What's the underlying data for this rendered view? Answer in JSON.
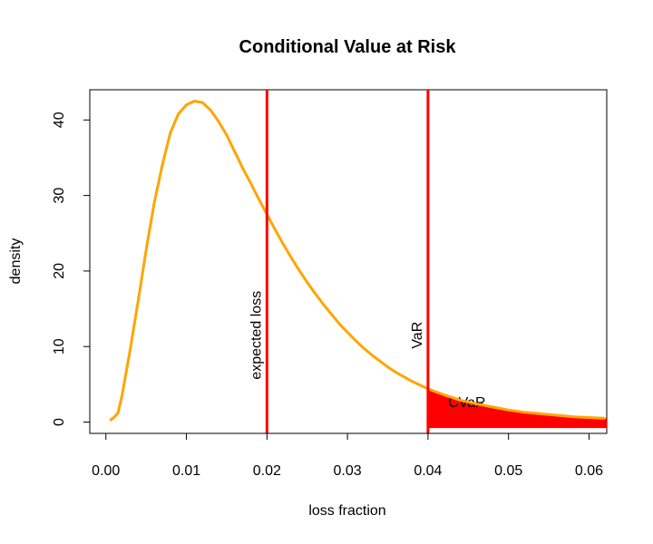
{
  "chart_data": {
    "type": "line",
    "title": "Conditional Value at Risk",
    "xlabel": "loss fraction",
    "ylabel": "density",
    "xlim": [
      -0.002,
      0.0622
    ],
    "ylim": [
      -1.5,
      44
    ],
    "x_ticks": [
      0.0,
      0.01,
      0.02,
      0.03,
      0.04,
      0.05,
      0.06
    ],
    "x_tick_labels": [
      "0.00",
      "0.01",
      "0.02",
      "0.03",
      "0.04",
      "0.05",
      "0.06"
    ],
    "y_ticks": [
      0,
      10,
      20,
      30,
      40
    ],
    "y_tick_labels": [
      "0",
      "10",
      "20",
      "30",
      "40"
    ],
    "grid": false,
    "series": [
      {
        "color": "#FFA500",
        "x": [
          0.0005,
          0.001,
          0.0015,
          0.002,
          0.003,
          0.004,
          0.005,
          0.006,
          0.007,
          0.008,
          0.009,
          0.01,
          0.011,
          0.012,
          0.013,
          0.014,
          0.015,
          0.016,
          0.017,
          0.018,
          0.019,
          0.02,
          0.021,
          0.022,
          0.023,
          0.024,
          0.025,
          0.026,
          0.027,
          0.028,
          0.029,
          0.03,
          0.031,
          0.032,
          0.033,
          0.034,
          0.035,
          0.036,
          0.037,
          0.038,
          0.039,
          0.04,
          0.042,
          0.044,
          0.046,
          0.048,
          0.05,
          0.052,
          0.054,
          0.056,
          0.058,
          0.06,
          0.062
        ],
        "y": [
          0.2,
          0.6,
          1.2,
          3.5,
          9.5,
          16.0,
          22.8,
          29.0,
          34.0,
          38.3,
          40.8,
          42.0,
          42.5,
          42.3,
          41.3,
          39.8,
          38.0,
          35.8,
          33.6,
          31.6,
          29.5,
          27.5,
          25.5,
          23.6,
          21.8,
          20.1,
          18.5,
          17.0,
          15.6,
          14.3,
          13.0,
          11.9,
          10.8,
          9.8,
          8.9,
          8.1,
          7.3,
          6.6,
          6.0,
          5.4,
          4.9,
          4.4,
          3.6,
          2.9,
          2.4,
          2.0,
          1.6,
          1.3,
          1.1,
          0.9,
          0.7,
          0.6,
          0.5
        ]
      }
    ],
    "vlines": [
      {
        "x": 0.02,
        "color": "#FF0000",
        "label": "expected loss",
        "label_y": 11.5
      },
      {
        "x": 0.04,
        "color": "#FF0000",
        "label": "VaR",
        "label_y": 11.5
      }
    ],
    "shaded_area": {
      "x_from": 0.04,
      "x_to": 0.0622,
      "y_floor": -0.8,
      "color": "#FF0000",
      "label": "CVaR",
      "label_x": 0.0425,
      "label_y": 2.0
    }
  }
}
